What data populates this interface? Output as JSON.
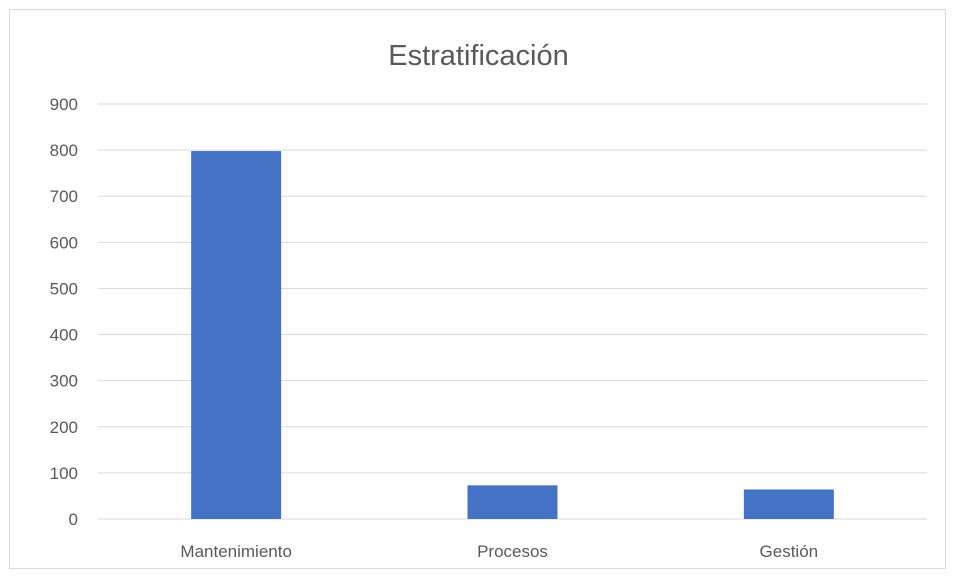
{
  "chart_data": {
    "type": "bar",
    "title": "Estratificación",
    "categories": [
      "Mantenimiento",
      "Procesos",
      "Gestión"
    ],
    "values": [
      798,
      73,
      64
    ],
    "ylim": [
      0,
      900
    ],
    "yticks": [
      0,
      100,
      200,
      300,
      400,
      500,
      600,
      700,
      800,
      900
    ],
    "grid": true,
    "legend": "none",
    "bar_color": "#4472c4"
  }
}
